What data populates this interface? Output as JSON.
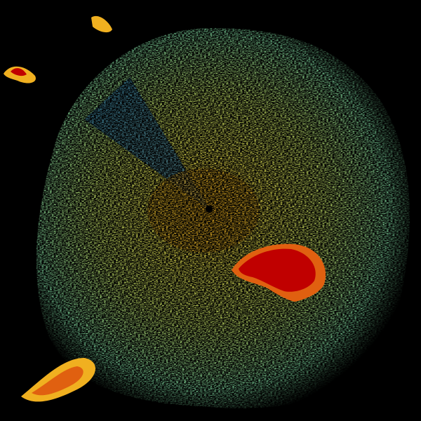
{
  "radar": {
    "colors": {
      "background": "#000000",
      "light": "#7fd8a0",
      "low": "#c8e66a",
      "mid": "#f0e850",
      "moderate": "#f0b020",
      "strong": "#e06010",
      "heavy": "#c00000",
      "clear_air": "#2878b8"
    }
  }
}
